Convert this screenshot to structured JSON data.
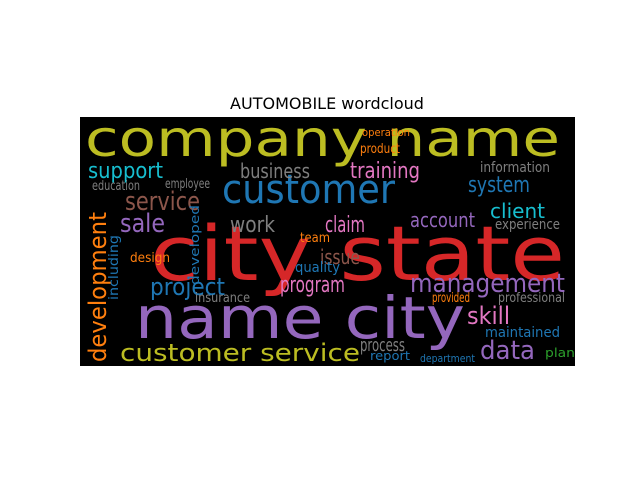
{
  "chart_data": {
    "type": "wordcloud",
    "title": "AUTOMOBILE wordcloud",
    "words": [
      {
        "text": "company name",
        "color": "#bcbd22"
      },
      {
        "text": "city state",
        "color": "#d62728"
      },
      {
        "text": "name city",
        "color": "#9467bd"
      },
      {
        "text": "customer",
        "color": "#1f77b4"
      },
      {
        "text": "management",
        "color": "#9467bd"
      },
      {
        "text": "service",
        "color": "#8c564b"
      },
      {
        "text": "support",
        "color": "#17becf"
      },
      {
        "text": "business",
        "color": "#7f7f7f"
      },
      {
        "text": "training",
        "color": "#e377c2"
      },
      {
        "text": "system",
        "color": "#1f77b4"
      },
      {
        "text": "client",
        "color": "#17becf"
      },
      {
        "text": "sale",
        "color": "#9467bd"
      },
      {
        "text": "work",
        "color": "#7f7f7f"
      },
      {
        "text": "claim",
        "color": "#e377c2"
      },
      {
        "text": "account",
        "color": "#9467bd"
      },
      {
        "text": "experience",
        "color": "#7f7f7f"
      },
      {
        "text": "project",
        "color": "#1f77b4"
      },
      {
        "text": "program",
        "color": "#e377c2"
      },
      {
        "text": "issue",
        "color": "#8c564b"
      },
      {
        "text": "skill",
        "color": "#e377c2"
      },
      {
        "text": "data",
        "color": "#9467bd"
      },
      {
        "text": "customer service",
        "color": "#bcbd22"
      },
      {
        "text": "process",
        "color": "#7f7f7f"
      },
      {
        "text": "development",
        "color": "#ff7f0e"
      },
      {
        "text": "information",
        "color": "#7f7f7f"
      },
      {
        "text": "quality",
        "color": "#1f77b4"
      },
      {
        "text": "team",
        "color": "#ff7f0e"
      },
      {
        "text": "employee",
        "color": "#7f7f7f"
      },
      {
        "text": "education",
        "color": "#7f7f7f"
      },
      {
        "text": "maintained",
        "color": "#1f77b4"
      },
      {
        "text": "professional",
        "color": "#7f7f7f"
      },
      {
        "text": "insurance",
        "color": "#7f7f7f"
      },
      {
        "text": "provided",
        "color": "#ff7f0e"
      },
      {
        "text": "report",
        "color": "#1f77b4"
      },
      {
        "text": "department",
        "color": "#1f77b4"
      },
      {
        "text": "plan",
        "color": "#2ca02c"
      },
      {
        "text": "product",
        "color": "#ff7f0e"
      },
      {
        "text": "operation",
        "color": "#ff7f0e"
      },
      {
        "text": "developed",
        "color": "#1f77b4"
      },
      {
        "text": "design",
        "color": "#ff7f0e"
      },
      {
        "text": "including",
        "color": "#1f77b4"
      }
    ]
  }
}
